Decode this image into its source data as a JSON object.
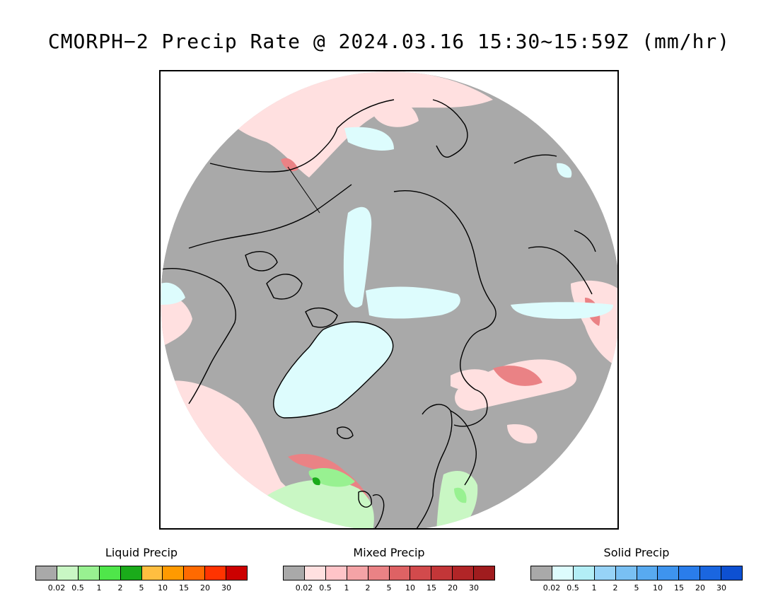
{
  "title": "CMORPH−2 Precip Rate @ 2024.03.16 15:30~15:59Z (mm/hr)",
  "map": {
    "projection": "north-polar-stereographic",
    "background_color": "#a9a9a9",
    "coastline_color": "#000000"
  },
  "legends": [
    {
      "id": "liquid",
      "title": "Liquid Precip",
      "colors": [
        "#a9a9a9",
        "#c9f7c4",
        "#98f191",
        "#4fe64a",
        "#1aab1a",
        "#ffbe40",
        "#ff9a00",
        "#ff6a00",
        "#ff3300",
        "#cc0000"
      ],
      "ticks": [
        "0.02",
        "0.5",
        "1",
        "2",
        "5",
        "10",
        "15",
        "20",
        "30"
      ]
    },
    {
      "id": "mixed",
      "title": "Mixed Precip",
      "colors": [
        "#a9a9a9",
        "#ffe0e0",
        "#ffc4c8",
        "#f4a3a6",
        "#ea8285",
        "#de6264",
        "#d24a4c",
        "#c33638",
        "#b12527",
        "#a01c1e"
      ],
      "ticks": [
        "0.02",
        "0.5",
        "1",
        "2",
        "5",
        "10",
        "15",
        "20",
        "30"
      ]
    },
    {
      "id": "solid",
      "title": "Solid Precip",
      "colors": [
        "#a9a9a9",
        "#ddfcfd",
        "#b3eef6",
        "#97d3f7",
        "#79c0f3",
        "#58aaf0",
        "#3e94ee",
        "#2a7deb",
        "#1a66e0",
        "#0d50d2"
      ],
      "ticks": [
        "0.02",
        "0.5",
        "1",
        "2",
        "5",
        "10",
        "15",
        "20",
        "30"
      ]
    }
  ]
}
